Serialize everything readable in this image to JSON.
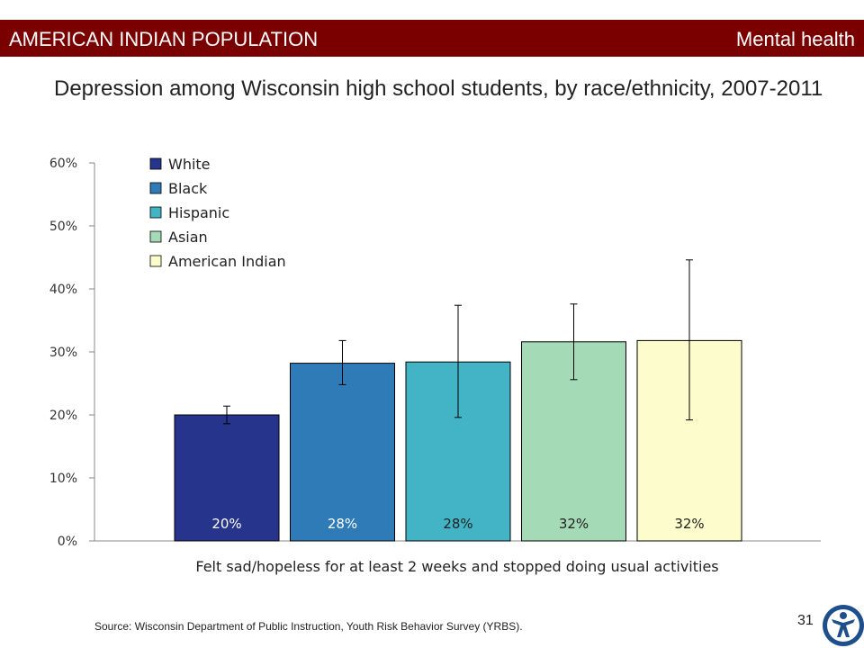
{
  "header": {
    "section": "AMERICAN INDIAN POPULATION",
    "topic": "Mental health"
  },
  "title": "Depression among Wisconsin high school students, by race/ethnicity, 2007-2011",
  "source": "Source: Wisconsin Department of Public Instruction, Youth Risk Behavior Survey (YRBS).",
  "page_number": "31",
  "colors": {
    "header_bg": "#7a0000",
    "White": "#27348b",
    "Black": "#2e7bb8",
    "Hispanic": "#43b3c6",
    "Asian": "#a5dab6",
    "American Indian": "#fdfccd"
  },
  "chart_data": {
    "type": "bar",
    "categories": [
      "Felt sad/hopeless for at least 2 weeks and stopped doing usual activities"
    ],
    "series": [
      {
        "name": "White",
        "value": 20,
        "ci": [
          18.6,
          21.4
        ],
        "label": "20%",
        "color": "#27348b",
        "label_color": "#ffffff"
      },
      {
        "name": "Black",
        "value": 28.2,
        "ci": [
          24.8,
          31.8
        ],
        "label": "28%",
        "color": "#2e7bb8",
        "label_color": "#ffffff"
      },
      {
        "name": "Hispanic",
        "value": 28.4,
        "ci": [
          19.6,
          37.4
        ],
        "label": "28%",
        "color": "#43b3c6",
        "label_color": "#222222"
      },
      {
        "name": "Asian",
        "value": 31.6,
        "ci": [
          25.6,
          37.6
        ],
        "label": "32%",
        "color": "#a5dab6",
        "label_color": "#222222"
      },
      {
        "name": "American Indian",
        "value": 31.8,
        "ci": [
          19.2,
          44.6
        ],
        "label": "32%",
        "color": "#fdfccd",
        "label_color": "#222222"
      }
    ],
    "yticks": [
      "0%",
      "10%",
      "20%",
      "30%",
      "40%",
      "50%",
      "60%"
    ],
    "ylim": [
      0,
      60
    ],
    "xlabel": "Felt sad/hopeless for at least 2 weeks and stopped doing usual activities",
    "ylabel": "",
    "legend": "top-left",
    "grid": false
  }
}
